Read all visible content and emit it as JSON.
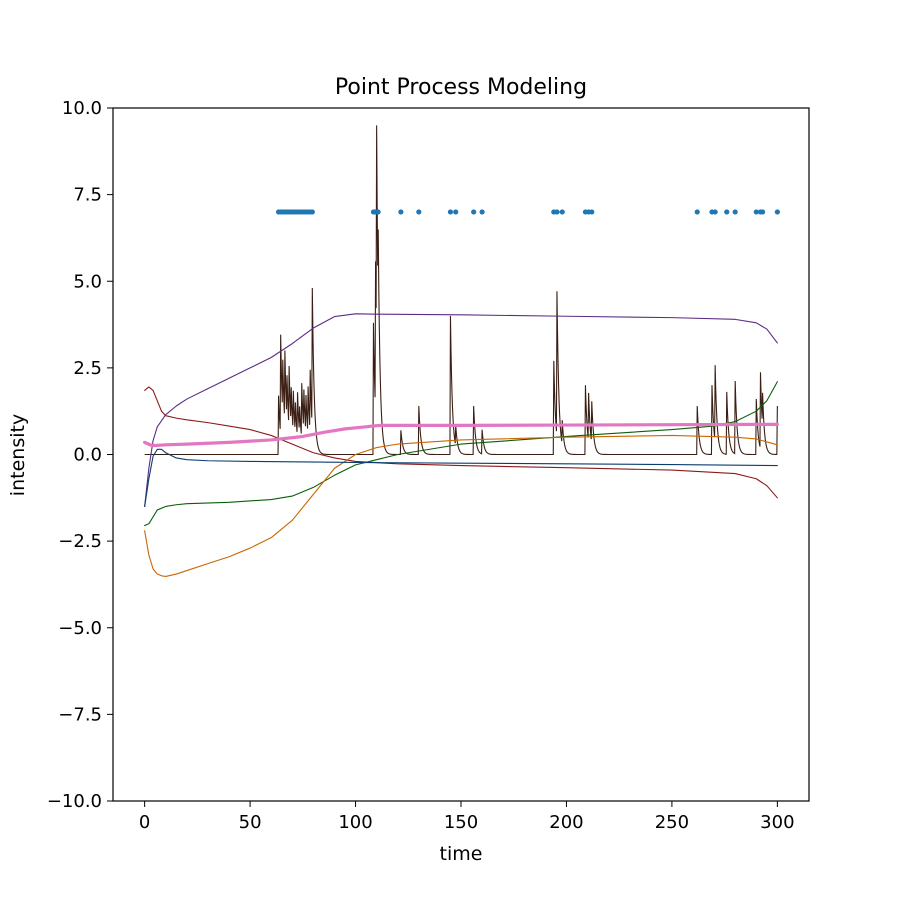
{
  "chart_data": {
    "type": "line",
    "title": "Point Process Modeling",
    "xlabel": "time",
    "ylabel": "intensity",
    "xlim": [
      -15,
      315
    ],
    "ylim": [
      -10,
      10
    ],
    "xticks": [
      0,
      50,
      100,
      150,
      200,
      250,
      300
    ],
    "xtick_labels": [
      "0",
      "50",
      "100",
      "150",
      "200",
      "250",
      "300"
    ],
    "yticks": [
      -10,
      -7.5,
      -5,
      -2.5,
      0,
      2.5,
      5,
      7.5,
      10
    ],
    "ytick_labels": [
      "−10.0",
      "−7.5",
      "−5.0",
      "−2.5",
      "0.0",
      "2.5",
      "5.0",
      "7.5",
      "10.0"
    ],
    "grid": false,
    "legend": "none",
    "events": {
      "y": 7,
      "color": "#1f77b4",
      "times": [
        63.5,
        64.5,
        65.5,
        66.5,
        67.5,
        68.5,
        69.5,
        70.5,
        71.5,
        72.5,
        73.5,
        74.5,
        75.5,
        76.5,
        77.5,
        78.5,
        79.5,
        108.5,
        109.3,
        110.0,
        110.7,
        121.5,
        130,
        145,
        147.5,
        156,
        160,
        194,
        195.5,
        198,
        209,
        210.5,
        212,
        262,
        269,
        270.5,
        276,
        280,
        290,
        292,
        293,
        300
      ]
    },
    "series": [
      {
        "color": "#5b2c83",
        "x": [
          0,
          2,
          4,
          6,
          10,
          15,
          20,
          30,
          40,
          50,
          60,
          70,
          80,
          90,
          100,
          110,
          150,
          200,
          250,
          280,
          290,
          295,
          300
        ],
        "y": [
          -1.5,
          -0.4,
          0.4,
          0.8,
          1.15,
          1.4,
          1.6,
          1.9,
          2.2,
          2.5,
          2.8,
          3.2,
          3.65,
          3.98,
          4.06,
          4.05,
          4.03,
          3.99,
          3.95,
          3.9,
          3.8,
          3.62,
          3.22
        ]
      },
      {
        "color": "#8b1a1a",
        "x": [
          0,
          2,
          4,
          6,
          8,
          10,
          15,
          20,
          30,
          40,
          50,
          60,
          70,
          80,
          90,
          100,
          120,
          150,
          200,
          250,
          280,
          290,
          295,
          300
        ],
        "y": [
          1.85,
          1.95,
          1.85,
          1.55,
          1.25,
          1.12,
          1.05,
          1.0,
          0.92,
          0.82,
          0.72,
          0.55,
          0.3,
          0.05,
          -0.1,
          -0.2,
          -0.27,
          -0.32,
          -0.38,
          -0.45,
          -0.55,
          -0.7,
          -0.9,
          -1.25
        ]
      },
      {
        "color": "#0b5e0b",
        "x": [
          0,
          2,
          4,
          6,
          10,
          15,
          20,
          40,
          60,
          70,
          80,
          90,
          100,
          120,
          150,
          200,
          250,
          270,
          280,
          290,
          295,
          300
        ],
        "y": [
          -2.05,
          -2.0,
          -1.8,
          -1.6,
          -1.5,
          -1.45,
          -1.42,
          -1.38,
          -1.3,
          -1.2,
          -0.95,
          -0.6,
          -0.3,
          0.0,
          0.3,
          0.52,
          0.72,
          0.82,
          0.95,
          1.25,
          1.55,
          2.1
        ]
      },
      {
        "color": "#cc6600",
        "x": [
          0,
          2,
          4,
          6,
          8,
          10,
          15,
          20,
          30,
          40,
          50,
          60,
          70,
          80,
          90,
          100,
          110,
          120,
          150,
          200,
          250,
          280,
          290,
          300
        ],
        "y": [
          -2.2,
          -2.9,
          -3.3,
          -3.45,
          -3.5,
          -3.52,
          -3.45,
          -3.35,
          -3.15,
          -2.95,
          -2.7,
          -2.4,
          -1.9,
          -1.15,
          -0.4,
          0.0,
          0.2,
          0.3,
          0.42,
          0.5,
          0.55,
          0.5,
          0.45,
          0.28
        ]
      },
      {
        "color": "#0b3d6e",
        "x": [
          0,
          2,
          4,
          6,
          8,
          10,
          15,
          20,
          30,
          50,
          100,
          150,
          200,
          250,
          300
        ],
        "y": [
          -1.5,
          -0.7,
          -0.05,
          0.15,
          0.15,
          0.05,
          -0.1,
          -0.15,
          -0.18,
          -0.2,
          -0.23,
          -0.25,
          -0.27,
          -0.29,
          -0.32
        ]
      },
      {
        "color": "#e377c2",
        "width": 3.2,
        "x": [
          0,
          3,
          5,
          10,
          20,
          40,
          60,
          75,
          85,
          95,
          105,
          108,
          112,
          150,
          200,
          250,
          300
        ],
        "y": [
          0.35,
          0.27,
          0.26,
          0.28,
          0.3,
          0.35,
          0.42,
          0.52,
          0.64,
          0.74,
          0.8,
          0.82,
          0.84,
          0.84,
          0.85,
          0.86,
          0.87
        ]
      }
    ],
    "intensity_trace": {
      "color": "#3b1f14",
      "baseline": 0,
      "spikes": [
        {
          "t": 63.5,
          "h": 1.7
        },
        {
          "t": 64.5,
          "h": 2.9
        },
        {
          "t": 65.5,
          "h": 1.6
        },
        {
          "t": 66.5,
          "h": 2.1
        },
        {
          "t": 67.5,
          "h": 1.3
        },
        {
          "t": 68.5,
          "h": 1.8
        },
        {
          "t": 69.5,
          "h": 1.1
        },
        {
          "t": 70.5,
          "h": 1.2
        },
        {
          "t": 71.5,
          "h": 0.9
        },
        {
          "t": 72.5,
          "h": 1.3
        },
        {
          "t": 73.5,
          "h": 0.8
        },
        {
          "t": 74.5,
          "h": 1.6
        },
        {
          "t": 75.5,
          "h": 1.2
        },
        {
          "t": 76.5,
          "h": 1.1
        },
        {
          "t": 77.5,
          "h": 1.4
        },
        {
          "t": 78.5,
          "h": 1.8
        },
        {
          "t": 79.5,
          "h": 4.0
        },
        {
          "t": 108.5,
          "h": 3.8
        },
        {
          "t": 109.3,
          "h": 5.4
        },
        {
          "t": 110.0,
          "h": 6.3
        },
        {
          "t": 110.7,
          "h": 2.5
        },
        {
          "t": 121.5,
          "h": 0.7
        },
        {
          "t": 130,
          "h": 1.4
        },
        {
          "t": 145,
          "h": 4.0
        },
        {
          "t": 147.5,
          "h": 0.6
        },
        {
          "t": 156,
          "h": 1.4
        },
        {
          "t": 160,
          "h": 0.7
        },
        {
          "t": 194,
          "h": 2.7
        },
        {
          "t": 195.5,
          "h": 4.2
        },
        {
          "t": 198,
          "h": 0.7
        },
        {
          "t": 209,
          "h": 2.0
        },
        {
          "t": 210.5,
          "h": 1.4
        },
        {
          "t": 212,
          "h": 1.2
        },
        {
          "t": 262,
          "h": 1.4
        },
        {
          "t": 269,
          "h": 2.0
        },
        {
          "t": 270.5,
          "h": 2.2
        },
        {
          "t": 276,
          "h": 1.8
        },
        {
          "t": 280,
          "h": 2.1
        },
        {
          "t": 290,
          "h": 1.6
        },
        {
          "t": 292,
          "h": 2.2
        },
        {
          "t": 293,
          "h": 1.0
        },
        {
          "t": 300,
          "h": 1.4
        }
      ]
    }
  }
}
